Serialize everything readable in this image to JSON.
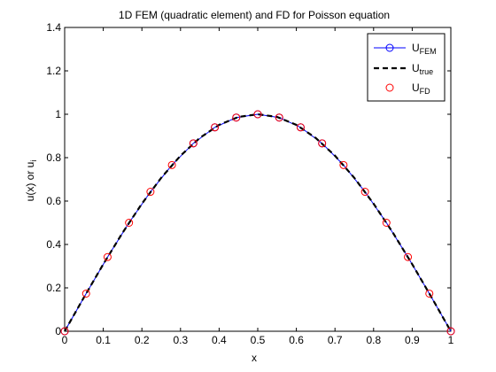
{
  "chart_data": {
    "type": "line",
    "title": "1D FEM (quadratic element) and FD for Poisson equation",
    "xlabel": "x",
    "ylabel_main": "u(x) or u",
    "ylabel_sub": "i",
    "xlim": [
      0,
      1
    ],
    "ylim": [
      0,
      1.4
    ],
    "xticks": [
      "0",
      "0.1",
      "0.2",
      "0.3",
      "0.4",
      "0.5",
      "0.6",
      "0.7",
      "0.8",
      "0.9",
      "1"
    ],
    "xtick_values": [
      0,
      0.1,
      0.2,
      0.3,
      0.4,
      0.5,
      0.6,
      0.7,
      0.8,
      0.9,
      1
    ],
    "yticks": [
      "0",
      "0.2",
      "0.4",
      "0.6",
      "0.8",
      "1",
      "1.2",
      "1.4"
    ],
    "ytick_values": [
      0,
      0.2,
      0.4,
      0.6,
      0.8,
      1,
      1.2,
      1.4
    ],
    "grid": false,
    "legend_position": "top-right",
    "series": [
      {
        "name_main": "U",
        "name_sub": "FEM",
        "style": "line-with-circle-markers",
        "color": "#0000ff",
        "x": [
          0,
          0.0556,
          0.1111,
          0.1667,
          0.2222,
          0.2778,
          0.3333,
          0.3889,
          0.4444,
          0.5,
          0.5556,
          0.6111,
          0.6667,
          0.7222,
          0.7778,
          0.8333,
          0.8889,
          0.9444,
          1
        ],
        "y": [
          0,
          0.1736,
          0.342,
          0.5,
          0.6428,
          0.766,
          0.866,
          0.9397,
          0.9848,
          1.0,
          0.9848,
          0.9397,
          0.866,
          0.766,
          0.6428,
          0.5,
          0.342,
          0.1736,
          0
        ],
        "marker_x": [
          0,
          0.3333,
          0.3889,
          0.4444,
          0.5,
          0.5556,
          0.6111,
          0.6667,
          1
        ],
        "marker_y": [
          0,
          0.866,
          0.9397,
          0.9848,
          1.0,
          0.9848,
          0.9397,
          0.866,
          0
        ]
      },
      {
        "name_main": "U",
        "name_sub": "true",
        "style": "dashed-line",
        "color": "#000000",
        "x": [
          0,
          0.05,
          0.1,
          0.15,
          0.2,
          0.25,
          0.3,
          0.35,
          0.4,
          0.45,
          0.5,
          0.55,
          0.6,
          0.65,
          0.7,
          0.75,
          0.8,
          0.85,
          0.9,
          0.95,
          1
        ],
        "y": [
          0,
          0.1564,
          0.309,
          0.454,
          0.5878,
          0.7071,
          0.809,
          0.891,
          0.9511,
          0.9877,
          1.0,
          0.9877,
          0.9511,
          0.891,
          0.809,
          0.7071,
          0.5878,
          0.454,
          0.309,
          0.1564,
          0
        ]
      },
      {
        "name_main": "U",
        "name_sub": "FD",
        "style": "circle-markers",
        "color": "#ff0000",
        "x": [
          0,
          0.0556,
          0.1111,
          0.1667,
          0.2222,
          0.2778,
          0.3333,
          0.3889,
          0.4444,
          0.5,
          0.5556,
          0.6111,
          0.6667,
          0.7222,
          0.7778,
          0.8333,
          0.8889,
          0.9444,
          1
        ],
        "y": [
          0,
          0.1736,
          0.342,
          0.5,
          0.6428,
          0.766,
          0.866,
          0.9397,
          0.9848,
          1.0,
          0.9848,
          0.9397,
          0.866,
          0.766,
          0.6428,
          0.5,
          0.342,
          0.1736,
          0
        ]
      }
    ]
  }
}
